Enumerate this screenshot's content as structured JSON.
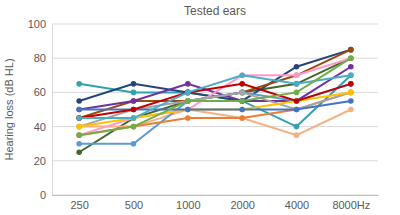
{
  "chart_data": {
    "type": "line",
    "title": "Tested ears",
    "y_label": "Hearing loss (dB HL)",
    "categories": [
      "250",
      "500",
      "1000",
      "2000",
      "4000",
      "8000Hz"
    ],
    "series": [
      {
        "color": "#43682b",
        "values": [
          25,
          45,
          55,
          60,
          65,
          80
        ]
      },
      {
        "color": "#31a0b0",
        "values": [
          65,
          60,
          60,
          55,
          40,
          70
        ]
      },
      {
        "color": "#264478",
        "values": [
          55,
          65,
          60,
          55,
          75,
          85
        ]
      },
      {
        "color": "#f4b183",
        "values": [
          40,
          40,
          50,
          45,
          35,
          50
        ]
      },
      {
        "color": "#9e480e",
        "values": [
          45,
          55,
          55,
          60,
          70,
          85
        ]
      },
      {
        "color": "#7030a0",
        "values": [
          50,
          55,
          65,
          55,
          55,
          75
        ]
      },
      {
        "color": "#5b9bd5",
        "values": [
          30,
          30,
          55,
          60,
          55,
          65
        ]
      },
      {
        "color": "#ed7d31",
        "values": [
          35,
          40,
          45,
          45,
          50,
          60
        ]
      },
      {
        "color": "#ff99cc",
        "values": [
          35,
          45,
          50,
          70,
          70,
          80
        ]
      },
      {
        "color": "#a5a5a5",
        "values": [
          40,
          50,
          55,
          60,
          50,
          60
        ]
      },
      {
        "color": "#ffc000",
        "values": [
          40,
          45,
          50,
          50,
          55,
          60
        ]
      },
      {
        "color": "#4472c4",
        "values": [
          50,
          50,
          50,
          50,
          50,
          55
        ]
      },
      {
        "color": "#c00000",
        "values": [
          45,
          50,
          60,
          65,
          55,
          65
        ]
      },
      {
        "color": "#4bacc6",
        "values": [
          45,
          45,
          60,
          70,
          65,
          70
        ]
      },
      {
        "color": "#70ad47",
        "values": [
          35,
          40,
          55,
          55,
          60,
          80
        ]
      }
    ],
    "ylim": [
      0,
      100
    ],
    "yticks": [
      0,
      20,
      40,
      60,
      80,
      100
    ],
    "grid": true,
    "marker": "circle"
  }
}
